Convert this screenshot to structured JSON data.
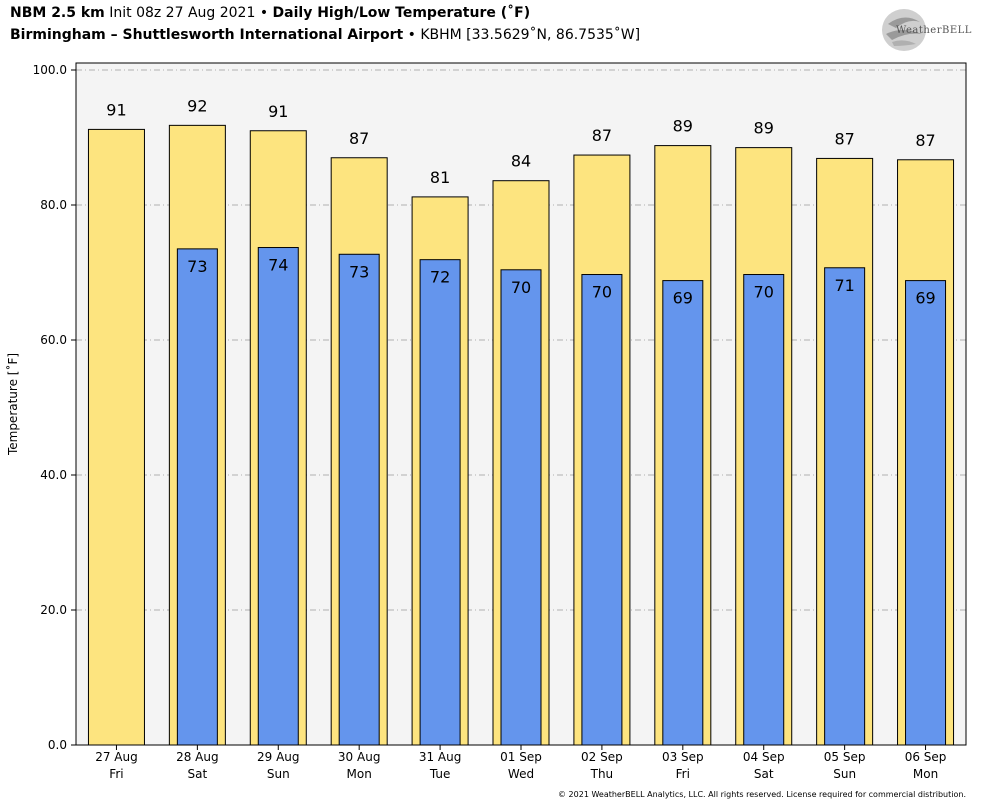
{
  "header": {
    "model": "NBM 2.5 km",
    "init": "Init 08z 27 Aug 2021",
    "bullet": "•",
    "product": "Daily High/Low Temperature (˚F)",
    "location": "Birmingham – Shuttlesworth International Airport",
    "station": "KBHM [33.5629˚N, 86.7535˚W]"
  },
  "logo": {
    "text": "WeatherBELL"
  },
  "copyright": "© 2021 WeatherBELL Analytics, LLC. All rights reserved. License required for commercial distribution.",
  "colors": {
    "high": "#fde47f",
    "low": "#6495ed",
    "plot_bg": "#f4f4f4",
    "grid": "#b0b0b0"
  },
  "chart_data": {
    "type": "bar",
    "ylabel": "Temperature [˚F]",
    "ylim": [
      0,
      100
    ],
    "yticks": [
      "0.0",
      "20.0",
      "40.0",
      "60.0",
      "80.0",
      "100.0"
    ],
    "ytick_values": [
      0,
      20,
      40,
      60,
      80,
      100
    ],
    "grid": true,
    "categories": [
      "27 Aug",
      "28 Aug",
      "29 Aug",
      "30 Aug",
      "31 Aug",
      "01 Sep",
      "02 Sep",
      "03 Sep",
      "04 Sep",
      "05 Sep",
      "06 Sep"
    ],
    "category_days": [
      "Fri",
      "Sat",
      "Sun",
      "Mon",
      "Tue",
      "Wed",
      "Thu",
      "Fri",
      "Sat",
      "Sun",
      "Mon"
    ],
    "series": [
      {
        "key": "high",
        "values": [
          91.2,
          91.8,
          91.0,
          87.0,
          81.2,
          83.6,
          87.4,
          88.8,
          88.5,
          86.9,
          86.7
        ],
        "labels": [
          "91",
          "92",
          "91",
          "87",
          "81",
          "84",
          "87",
          "89",
          "89",
          "87",
          "87"
        ]
      },
      {
        "key": "low",
        "values": [
          null,
          73.5,
          73.7,
          72.7,
          71.9,
          70.4,
          69.7,
          68.8,
          69.7,
          70.7,
          68.8
        ],
        "labels": [
          "",
          "73",
          "74",
          "73",
          "72",
          "70",
          "70",
          "69",
          "70",
          "71",
          "69"
        ]
      }
    ]
  }
}
